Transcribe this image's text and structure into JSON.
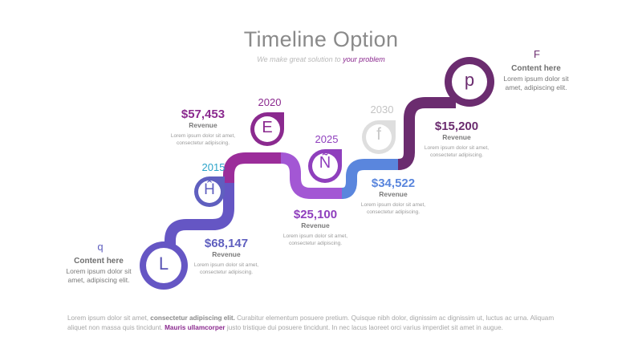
{
  "header": {
    "title": "Timeline Option",
    "subtitle_prefix": "We make great solution to",
    "subtitle_accent": "your problem"
  },
  "colors": {
    "purple_dark": "#6b2c6f",
    "purple_magenta": "#9b2d9a",
    "purple_violet": "#7b58c7",
    "violet_light": "#a257d6",
    "blue": "#5b86dd",
    "indigo": "#5f5fbf",
    "teal": "#2aa3c9",
    "grey_light": "#d7d7d7"
  },
  "milestones": [
    {
      "icon_letter": "L",
      "icon_name": "letter-l-icon",
      "year": "",
      "amount": "$68,147",
      "label": "Revenue",
      "desc_line1": "Lorem ipsum dolor sit amet,",
      "desc_line2": "consectetur adipiscing."
    },
    {
      "icon_letter": "Ĥ",
      "icon_name": "letter-h-circumflex-icon",
      "year": "2015",
      "amount": "$57,453",
      "label": "Revenue",
      "desc_line1": "Lorem ipsum dolor sit amet,",
      "desc_line2": "consectetur adipiscing."
    },
    {
      "icon_letter": "E",
      "icon_name": "letter-e-icon",
      "year": "2020",
      "amount": "$25,100",
      "label": "Revenue",
      "desc_line1": "Lorem ipsum dolor sit amet,",
      "desc_line2": "consectetur adipiscing."
    },
    {
      "icon_letter": "Ñ",
      "icon_name": "letter-n-tilde-icon",
      "year": "2025",
      "amount": "$34,522",
      "label": "Revenue",
      "desc_line1": "Lorem ipsum dolor sit amet,",
      "desc_line2": "consectetur adipiscing."
    },
    {
      "icon_letter": "f",
      "icon_name": "letter-f-icon",
      "year": "2030",
      "amount": "$15,200",
      "label": "Revenue",
      "desc_line1": "Lorem ipsum dolor sit amet,",
      "desc_line2": "consectetur adipiscing."
    },
    {
      "icon_letter": "p",
      "icon_name": "letter-p-icon",
      "year": ""
    }
  ],
  "side_left": {
    "letter": "q",
    "title": "Content here",
    "body_line1": "Lorem ipsum dolor sit",
    "body_line2": "amet, adipiscing elit."
  },
  "side_right": {
    "letter": "F",
    "title": "Content here",
    "body_line1": "Lorem ipsum dolor sit",
    "body_line2": "amet, adipiscing elit."
  },
  "footer": {
    "part1": "Lorem ipsum dolor sit amet, ",
    "bold1": "consectetur adipiscing elit.",
    "part2": " Curabitur elementum posuere pretium. Quisque nibh dolor, dignissim ac dignissim ut, luctus ac urna. Aliquam aliquet non massa quis tincidunt. ",
    "accent": "Mauris ullamcorper",
    "part3": " justo tristique dui posuere tincidunt. In nec lacus laoreet orci varius imperdiet sit amet in augue."
  }
}
